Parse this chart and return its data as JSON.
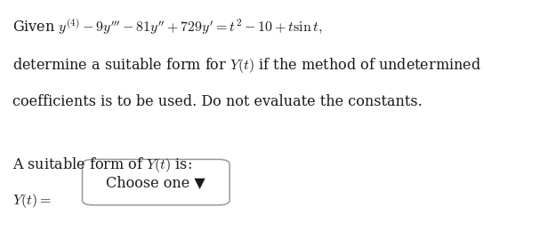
{
  "bg_color": "#ffffff",
  "line1": "Given $y^{(4)} - 9y^{\\prime\\prime\\prime} - 81y^{\\prime\\prime} + 729y^{\\prime} = t^2 - 10 + t\\sin t,$",
  "line2": "determine a suitable form for $Y(t)$ if the method of undetermined",
  "line3": "coefficients is to be used. Do not evaluate the constants.",
  "line4": "A suitable form of $Y(t)$ is:",
  "line5_left": "$Y(t) =$",
  "line5_box": "Choose one ▼",
  "font_size_main": 11.5,
  "text_color": "#1a1a1a",
  "box_border_color": "#999999",
  "box_bg_color": "#ffffff"
}
